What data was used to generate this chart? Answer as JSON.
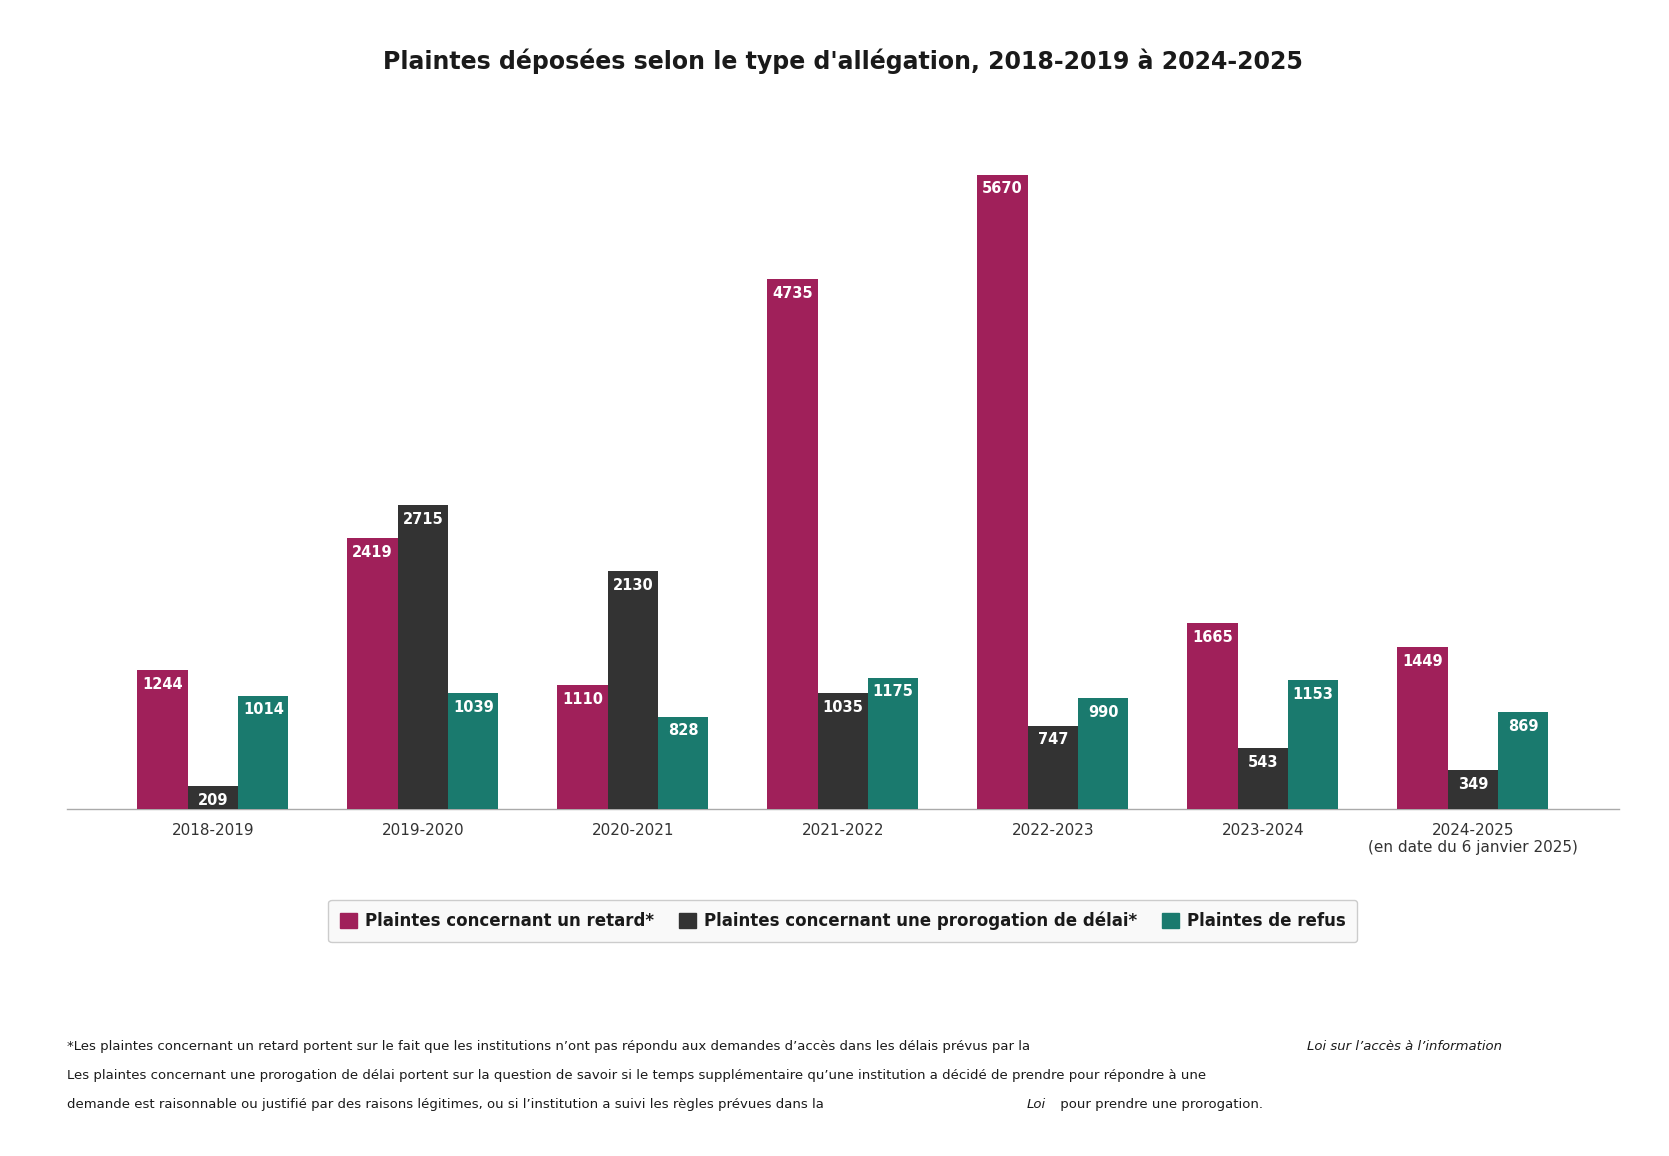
{
  "title": "Plaintes déposées selon le type d'allégation, 2018-2019 à 2024-2025",
  "categories": [
    "2018-2019",
    "2019-2020",
    "2020-2021",
    "2021-2022",
    "2022-2023",
    "2023-2024",
    "2024-2025\n(en date du 6 janvier 2025)"
  ],
  "retard": [
    1244,
    2419,
    1110,
    4735,
    5670,
    1665,
    1449
  ],
  "prorogation": [
    209,
    2715,
    2130,
    1035,
    747,
    543,
    349
  ],
  "refus": [
    1014,
    1039,
    828,
    1175,
    990,
    1153,
    869
  ],
  "color_retard": "#a0205a",
  "color_prorogation": "#333333",
  "color_refus": "#1a7a6e",
  "legend_retard": "Plaintes concernant un retard*",
  "legend_prorogation": "Plaintes concernant une prorogation de délai*",
  "legend_refus": "Plaintes de refus",
  "background_color": "#ffffff",
  "bar_width": 0.24,
  "ylim": [
    0,
    6300
  ],
  "footnote1_normal": "*Les plaintes concernant un retard portent sur le fait que les institutions n’ont pas répondu aux demandes d’accès dans les délais prévus par la ",
  "footnote1_italic": "Loi sur l’accès à l’information",
  "footnote1_end": ".",
  "footnote2": "Les plaintes concernant une prorogation de délai portent sur la question de savoir si le temps supplémentaire qu’une institution a décidé de prendre pour répondre à une",
  "footnote3_normal": "demande est raisonnable ou justifié par des raisons légitimes, ou si l’institution a suivi les règles prévues dans la ",
  "footnote3_italic": "Loi",
  "footnote3_end": " pour prendre une prorogation."
}
